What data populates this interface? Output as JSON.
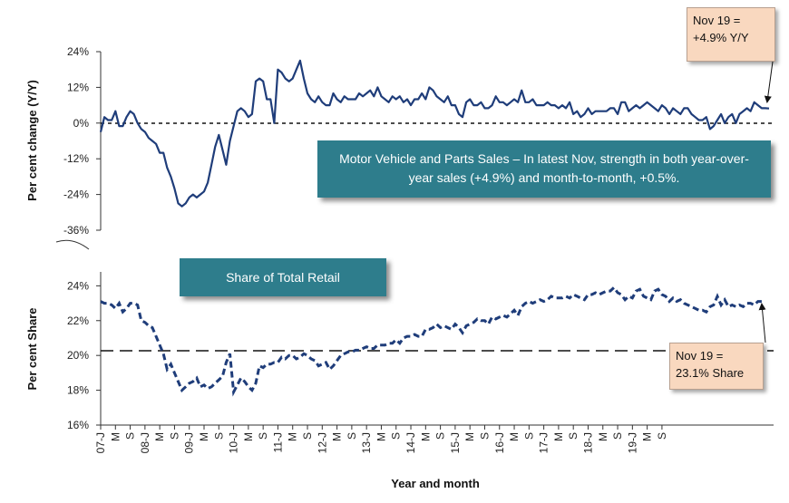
{
  "chart_data": [
    {
      "type": "line",
      "ylabel": "Per cent change (Y/Y)",
      "yticks": [
        "24%",
        "12%",
        "0%",
        "-12%",
        "-24%",
        "-36%"
      ],
      "ylim": [
        -36,
        24
      ],
      "reference_line": 0,
      "x_start": "2007-01",
      "series": [
        {
          "color": "#1f3d7a",
          "values": [
            -3,
            2,
            1,
            1,
            4,
            -1,
            -1,
            2,
            4,
            3,
            0,
            -2,
            -3,
            -5,
            -6,
            -7,
            -10,
            -10,
            -15,
            -18,
            -22,
            -27,
            -28,
            -27,
            -25,
            -24,
            -25,
            -24,
            -23,
            -20,
            -14,
            -8,
            -4,
            -9,
            -14,
            -6,
            -1,
            4,
            5,
            4,
            2,
            3,
            14,
            15,
            14,
            8,
            8,
            0,
            18,
            17,
            15,
            14,
            15,
            18,
            21,
            15,
            10,
            8,
            7,
            9,
            7,
            6,
            6,
            10,
            8,
            7,
            9,
            8,
            8,
            8,
            10,
            9,
            10,
            11,
            9,
            12,
            9,
            8,
            7,
            9,
            8,
            9,
            7,
            8,
            6,
            8,
            8,
            10,
            8,
            12,
            11,
            9,
            8,
            7,
            9,
            6,
            6,
            3,
            2,
            7,
            8,
            6,
            6,
            7,
            5,
            5,
            6,
            9,
            7,
            7,
            6,
            7,
            8,
            7,
            11,
            7,
            7,
            8,
            6,
            6,
            6,
            7,
            6,
            6,
            5,
            6,
            5,
            7,
            3,
            4,
            2,
            3,
            5,
            3,
            4,
            4,
            4,
            4,
            5,
            5,
            3,
            7,
            7,
            4,
            5,
            6,
            5,
            6,
            7,
            6,
            5,
            4,
            6,
            5,
            3,
            5,
            4,
            3,
            5,
            5,
            3,
            2,
            1,
            1,
            2,
            -2,
            -1,
            1,
            3,
            0,
            2,
            3,
            0,
            3,
            4,
            5,
            4,
            7,
            6,
            5,
            5,
            4.9
          ]
        }
      ]
    },
    {
      "type": "line",
      "title": "Share of Total Retail",
      "ylabel": "Per cent Share",
      "yticks": [
        "24%",
        "22%",
        "20%",
        "18%",
        "16%"
      ],
      "ylim": [
        16,
        24.8
      ],
      "reference_line": 20,
      "x_start": "2007-01",
      "xlabel": "Year and month",
      "xticks": [
        "07-J",
        "M",
        "S",
        "08-J",
        "M",
        "S",
        "09-J",
        "M",
        "S",
        "10-J",
        "M",
        "S",
        "11-J",
        "M",
        "S",
        "12-J",
        "M",
        "S",
        "13-J",
        "M",
        "S",
        "14-J",
        "M",
        "S",
        "15-J",
        "M",
        "S",
        "16-J",
        "M",
        "S",
        "17-J",
        "M",
        "S",
        "18-J",
        "M",
        "S",
        "19-J",
        "M",
        "S"
      ],
      "series": [
        {
          "color": "#1f3d7a",
          "values": [
            23.1,
            23.0,
            23.0,
            22.9,
            22.7,
            23.0,
            22.5,
            22.7,
            23.0,
            23.0,
            22.9,
            22.0,
            21.9,
            21.7,
            21.6,
            21.1,
            20.6,
            20.1,
            19.2,
            19.5,
            19.0,
            18.5,
            18.0,
            18.2,
            18.4,
            18.5,
            18.7,
            18.2,
            18.3,
            18.1,
            18.2,
            18.4,
            18.6,
            18.8,
            19.6,
            20.1,
            17.9,
            18.3,
            18.7,
            18.5,
            18.2,
            18.0,
            18.4,
            19.4,
            19.3,
            19.5,
            19.5,
            19.6,
            19.6,
            19.9,
            19.8,
            20.0,
            20.0,
            19.8,
            19.9,
            20.1,
            20.0,
            19.8,
            19.7,
            19.4,
            19.5,
            19.6,
            19.2,
            19.4,
            19.7,
            20.0,
            20.1,
            20.2,
            20.2,
            20.3,
            20.3,
            20.4,
            20.5,
            20.4,
            20.4,
            20.6,
            20.6,
            20.6,
            20.7,
            20.7,
            20.9,
            20.7,
            21.0,
            21.1,
            21.1,
            21.2,
            21.1,
            21.1,
            21.5,
            21.5,
            21.6,
            21.8,
            21.6,
            21.7,
            21.6,
            21.5,
            21.8,
            21.6,
            21.3,
            21.7,
            21.8,
            21.9,
            22.1,
            22.0,
            22.0,
            21.8,
            22.2,
            22.1,
            22.2,
            22.3,
            22.2,
            22.4,
            22.6,
            22.3,
            22.8,
            23.0,
            23.1,
            23.0,
            23.1,
            23.2,
            23.1,
            23.2,
            23.4,
            23.3,
            23.3,
            23.3,
            23.4,
            23.3,
            23.5,
            23.4,
            23.3,
            23.2,
            23.5,
            23.5,
            23.6,
            23.5,
            23.6,
            23.7,
            23.7,
            23.9,
            23.6,
            23.5,
            23.2,
            23.4,
            23.3,
            23.7,
            23.8,
            23.4,
            23.3,
            23.2,
            23.7,
            23.8,
            23.5,
            23.4,
            23.1,
            23.3,
            23.1,
            23.2,
            23.0,
            22.9,
            22.8,
            22.7,
            22.6,
            22.6,
            22.5,
            22.8,
            22.9,
            23.4,
            22.9,
            23.2,
            22.8,
            22.9,
            22.8,
            22.9,
            22.8,
            23.0,
            23.0,
            22.9,
            23.1,
            23.1
          ]
        }
      ]
    }
  ],
  "callouts": {
    "top": [
      "Nov 19 =",
      "+4.9% Y/Y"
    ],
    "bottom": [
      "Nov 19 =",
      "23.1% Share"
    ]
  },
  "banner_top": "Motor Vehicle and Parts Sales – In latest Nov, strength in both  year-over-year sales (+4.9%) and month-to-month, +0.5%.",
  "banner_bottom": "Share of Total Retail"
}
